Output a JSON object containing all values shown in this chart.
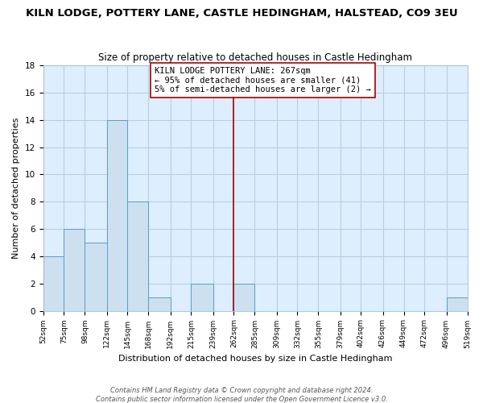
{
  "title": "KILN LODGE, POTTERY LANE, CASTLE HEDINGHAM, HALSTEAD, CO9 3EU",
  "subtitle": "Size of property relative to detached houses in Castle Hedingham",
  "xlabel": "Distribution of detached houses by size in Castle Hedingham",
  "ylabel": "Number of detached properties",
  "bar_edges": [
    52,
    75,
    98,
    122,
    145,
    168,
    192,
    215,
    239,
    262,
    285,
    309,
    332,
    355,
    379,
    402,
    426,
    449,
    472,
    496,
    519
  ],
  "bar_heights": [
    4,
    6,
    5,
    14,
    8,
    1,
    0,
    2,
    0,
    2,
    0,
    0,
    0,
    0,
    0,
    0,
    0,
    0,
    0,
    1
  ],
  "bar_color": "#cce0f0",
  "bar_edge_color": "#5a9ec9",
  "reference_line_x": 262,
  "reference_line_color": "#aa0000",
  "annotation_text": "KILN LODGE POTTERY LANE: 267sqm\n← 95% of detached houses are smaller (41)\n5% of semi-detached houses are larger (2) →",
  "annotation_box_color": "white",
  "annotation_box_edge_color": "#aa0000",
  "ylim": [
    0,
    18
  ],
  "yticks": [
    0,
    2,
    4,
    6,
    8,
    10,
    12,
    14,
    16,
    18
  ],
  "tick_labels": [
    "52sqm",
    "75sqm",
    "98sqm",
    "122sqm",
    "145sqm",
    "168sqm",
    "192sqm",
    "215sqm",
    "239sqm",
    "262sqm",
    "285sqm",
    "309sqm",
    "332sqm",
    "355sqm",
    "379sqm",
    "402sqm",
    "426sqm",
    "449sqm",
    "472sqm",
    "496sqm",
    "519sqm"
  ],
  "footer_text": "Contains HM Land Registry data © Crown copyright and database right 2024.\nContains public sector information licensed under the Open Government Licence v3.0.",
  "background_color": "#ffffff",
  "plot_background_color": "#ddeeff",
  "grid_color": "#b8cfe0",
  "title_fontsize": 9.5,
  "subtitle_fontsize": 8.5,
  "xlabel_fontsize": 8,
  "ylabel_fontsize": 8,
  "annotation_fontsize": 7.5,
  "footer_fontsize": 6,
  "tick_fontsize": 6.5
}
